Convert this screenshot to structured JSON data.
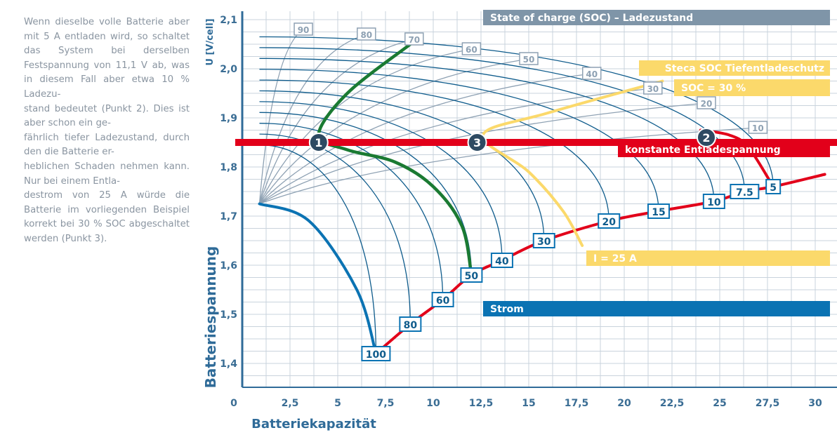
{
  "side_text": "Wenn dieselbe volle Batterie aber mit 5 A entladen wird, so schaltet das System bei derselben Festspannung von 11,1 V ab, was in diesem Fall aber etwa 10 % Ladezu-\nstand bedeutet (Punkt 2). Dies ist aber schon ein ge-\nfährlich tiefer Ladezustand, durch den die Batterie er-\nheblichen Schaden nehmen kann. Nur bei einem Entla-\ndestrom von 25 A würde die Batterie im vorliegenden Beispiel korrekt bei 30 % SOC abgeschaltet werden (Punkt 3).",
  "colors": {
    "background": "#ffffff",
    "text_gray": "#8a95a1",
    "axis_text": "#3a6d94",
    "axis_title": "#2f6b98",
    "grid": "#c9d3dc",
    "soc_curve": "#8ea1b3",
    "current_curve": "#0f5c8c",
    "strom_blue": "#0b73b3",
    "red": "#e2001a",
    "green": "#1a7a32",
    "yellow": "#fbd96b",
    "slate_banner": "#7f95a8",
    "dark_marker": "#2d4a62"
  },
  "chart_data": {
    "type": "line",
    "xlabel": "Batteriekapazität",
    "ylabel": "Batteriespannung",
    "y_unit_label": "U [V/cell]",
    "xlim": [
      0,
      30
    ],
    "ylim": [
      1.36,
      2.11
    ],
    "x_ticks": [
      0,
      2.5,
      5,
      7.5,
      10,
      12.5,
      15,
      17.5,
      20,
      22.5,
      25,
      27.5,
      30
    ],
    "x_tick_labels": [
      "0",
      "2,5",
      "5",
      "7,5",
      "10",
      "12,5",
      "15",
      "17,5",
      "20",
      "22,5",
      "25",
      "27,5",
      "30"
    ],
    "y_ticks": [
      1.4,
      1.5,
      1.6,
      1.7,
      1.8,
      1.9,
      2.0,
      2.1
    ],
    "y_tick_labels": [
      "1,4",
      "1,5",
      "1,6",
      "1,7",
      "1,8",
      "1,9",
      "2,0",
      "2,1"
    ],
    "grid": true,
    "current_points": [
      {
        "label": "100",
        "x": 7.0,
        "y": 1.42
      },
      {
        "label": "80",
        "x": 8.8,
        "y": 1.48
      },
      {
        "label": "60",
        "x": 10.5,
        "y": 1.53
      },
      {
        "label": "50",
        "x": 12.0,
        "y": 1.58
      },
      {
        "label": "40",
        "x": 13.6,
        "y": 1.61
      },
      {
        "label": "30",
        "x": 15.8,
        "y": 1.65
      },
      {
        "label": "20",
        "x": 19.2,
        "y": 1.69
      },
      {
        "label": "15",
        "x": 21.8,
        "y": 1.71
      },
      {
        "label": "10",
        "x": 24.7,
        "y": 1.73
      },
      {
        "label": "7.5",
        "x": 26.3,
        "y": 1.75
      },
      {
        "label": "5",
        "x": 27.8,
        "y": 1.76
      }
    ],
    "current_line_end": {
      "x": 30.5,
      "y": 1.785
    },
    "soc_labels": [
      {
        "label": "90",
        "x": 3.2,
        "y": 2.08
      },
      {
        "label": "80",
        "x": 6.5,
        "y": 2.07
      },
      {
        "label": "70",
        "x": 9.0,
        "y": 2.06
      },
      {
        "label": "60",
        "x": 12.0,
        "y": 2.04
      },
      {
        "label": "50",
        "x": 15.0,
        "y": 2.02
      },
      {
        "label": "40",
        "x": 18.3,
        "y": 1.99
      },
      {
        "label": "30",
        "x": 21.5,
        "y": 1.96
      },
      {
        "label": "20",
        "x": 24.3,
        "y": 1.93
      },
      {
        "label": "10",
        "x": 27.0,
        "y": 1.88
      }
    ],
    "soc_curve_start": {
      "x": 0.9,
      "y": 1.725
    },
    "strom_curve": {
      "label": "Strom",
      "x": [
        0.9,
        3.5,
        6.0,
        7.0
      ],
      "y": [
        1.725,
        1.69,
        1.55,
        1.42
      ]
    },
    "green_curve": {
      "x": [
        8.8,
        5.5,
        4.0,
        5.5,
        8.0,
        10.0,
        11.5,
        12.0
      ],
      "y": [
        2.05,
        1.95,
        1.865,
        1.835,
        1.81,
        1.76,
        1.68,
        1.58
      ]
    },
    "yellow_curve": {
      "label": "I = 25 A",
      "x": [
        22.0,
        16.0,
        12.6,
        15.0,
        16.8,
        17.8
      ],
      "y": [
        1.975,
        1.91,
        1.865,
        1.79,
        1.71,
        1.64
      ]
    },
    "red_line": {
      "label": "konstante Entladespannung",
      "y": 1.85
    },
    "red_curve": {
      "x": [
        24.0,
        25.5,
        26.5,
        27.8
      ],
      "y": [
        1.875,
        1.865,
        1.84,
        1.76
      ]
    },
    "markers": [
      {
        "label": "1",
        "x": 4.0,
        "y": 1.85
      },
      {
        "label": "2",
        "x": 24.3,
        "y": 1.86
      },
      {
        "label": "3",
        "x": 12.3,
        "y": 1.85
      }
    ],
    "banners": {
      "soc_title": "State of charge (SOC) – Ladezustand",
      "steca": "Steca SOC Tiefentladeschutz",
      "soc30": "SOC = 30 %",
      "konstante": "konstante Entladespannung",
      "i25": "I = 25 A",
      "strom": "Strom"
    }
  }
}
